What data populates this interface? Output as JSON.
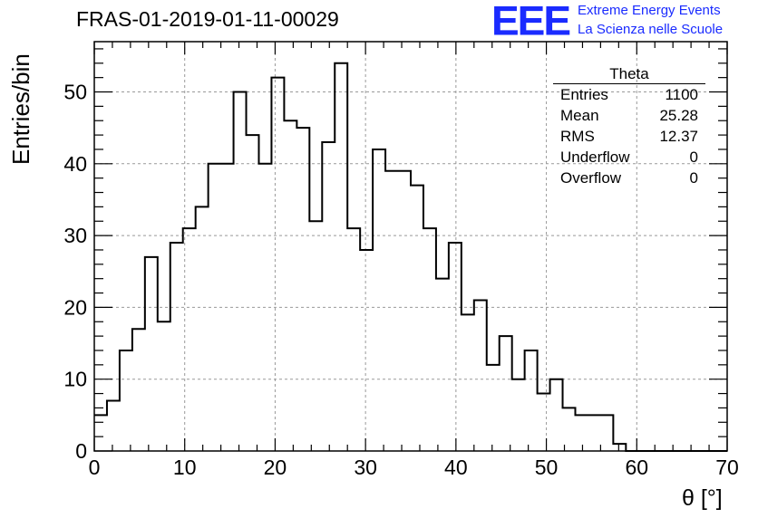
{
  "title": "FRAS-01-2019-01-11-00029",
  "logo": {
    "mark": "EEE",
    "line1": "Extreme Energy Events",
    "line2": "La Scienza nelle Scuole",
    "color": "#1a2bff"
  },
  "stats": {
    "title": "Theta",
    "rows": [
      {
        "label": "Entries",
        "value": "1100"
      },
      {
        "label": "Mean",
        "value": "25.28"
      },
      {
        "label": "RMS",
        "value": "12.37"
      },
      {
        "label": "Underflow",
        "value": "0"
      },
      {
        "label": "Overflow",
        "value": "0"
      }
    ]
  },
  "chart_data": {
    "type": "histogram",
    "xlabel": "θ [°]",
    "ylabel": "Entries/bin",
    "xlim": [
      0,
      70
    ],
    "ylim": [
      0,
      57
    ],
    "x_ticks": [
      0,
      10,
      20,
      30,
      40,
      50,
      60,
      70
    ],
    "y_ticks": [
      0,
      10,
      20,
      30,
      40,
      50
    ],
    "grid": true,
    "bin_width": 1.4,
    "bin_edges_start": 0,
    "values": [
      5,
      7,
      14,
      17,
      27,
      18,
      29,
      31,
      34,
      40,
      40,
      50,
      44,
      40,
      52,
      46,
      45,
      32,
      43,
      54,
      31,
      28,
      42,
      39,
      39,
      37,
      31,
      24,
      29,
      19,
      21,
      12,
      16,
      10,
      14,
      8,
      10,
      6,
      5,
      5,
      5,
      1,
      0,
      0,
      0,
      0,
      0,
      0,
      0,
      0
    ],
    "line_color": "#000000",
    "grid_color": "#999999"
  }
}
